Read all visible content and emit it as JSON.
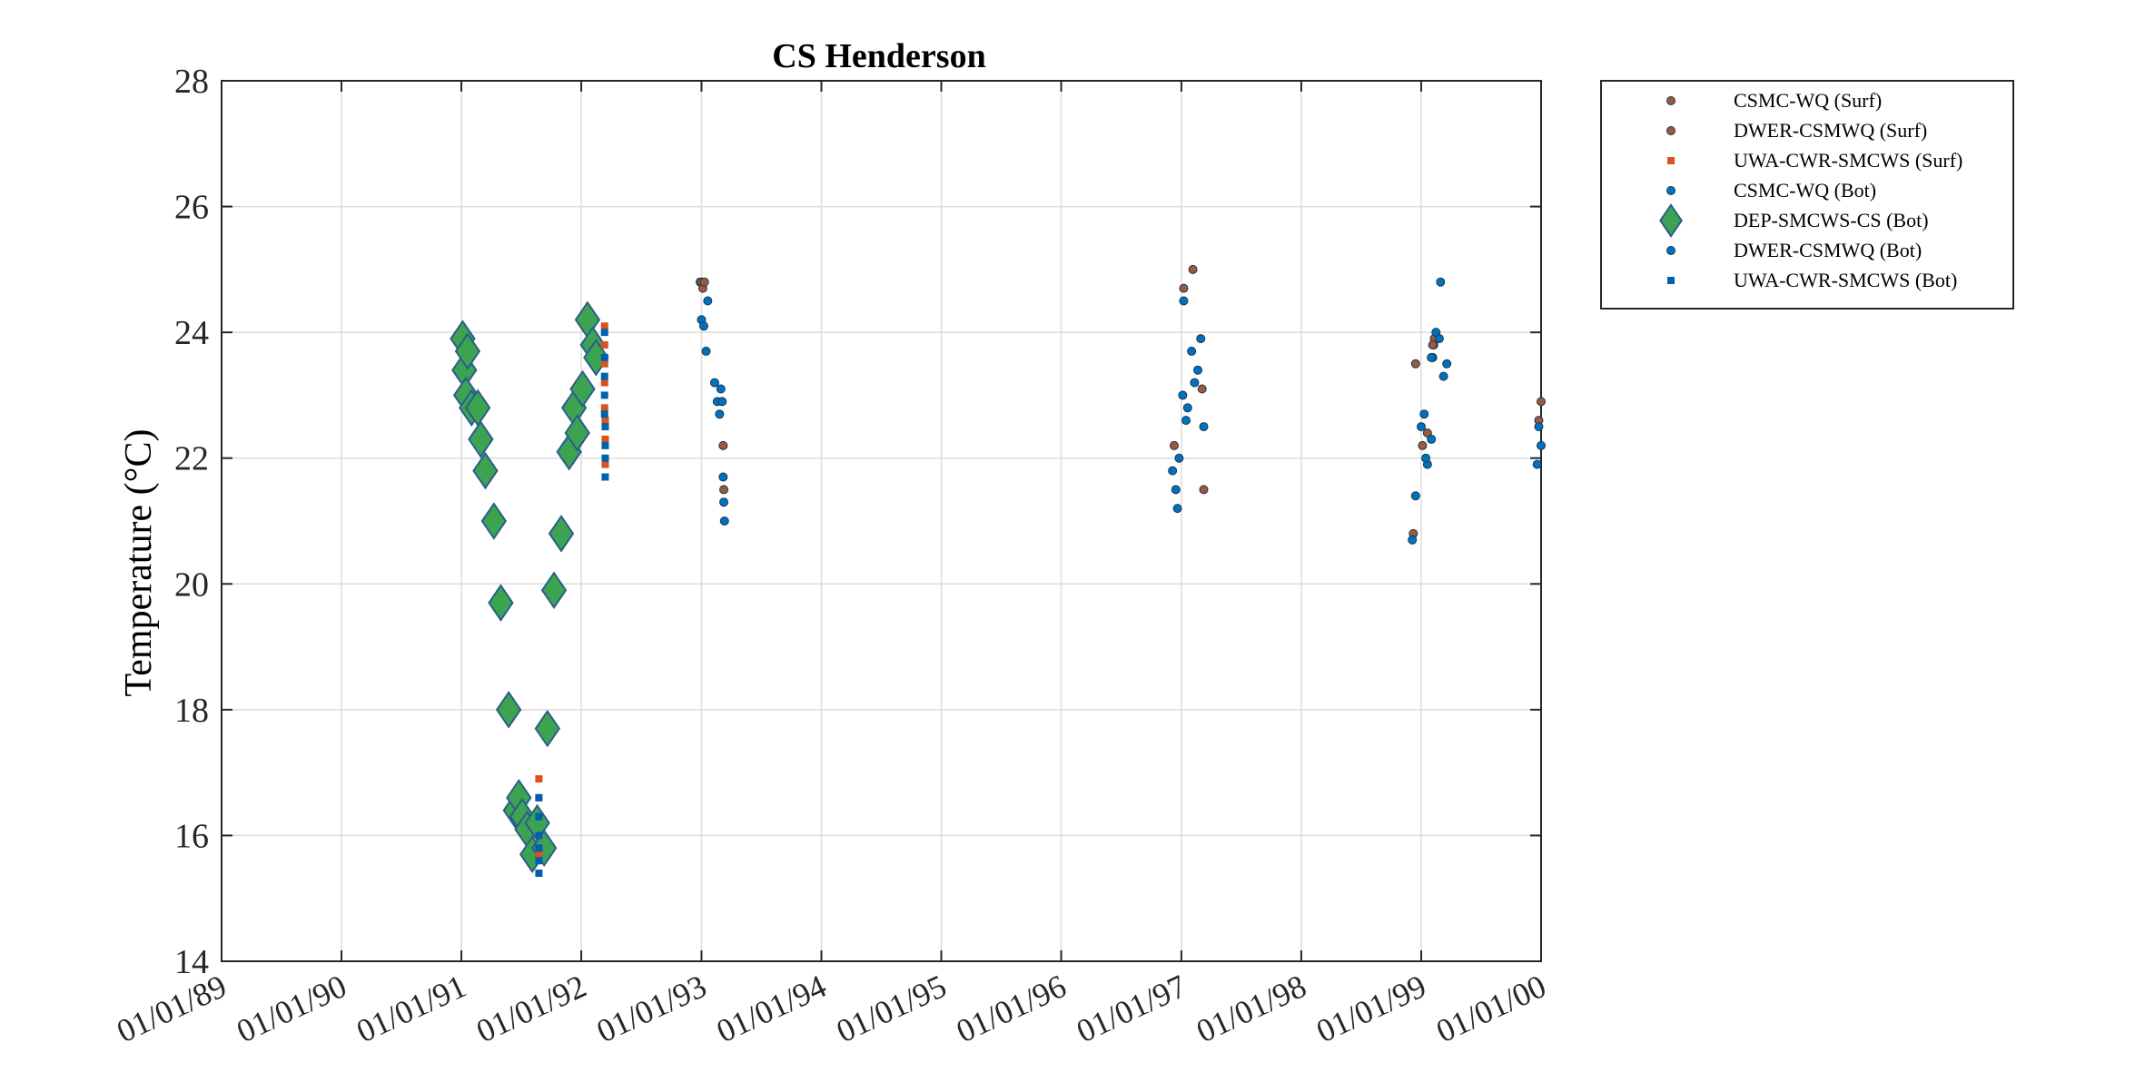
{
  "chart_data": {
    "type": "scatter",
    "title": "CS Henderson",
    "xlabel": "",
    "ylabel": "Temperature (°C)",
    "ylim": [
      14,
      28
    ],
    "yticks": [
      14,
      16,
      18,
      20,
      22,
      24,
      26,
      28
    ],
    "xlim": [
      "1989-01-01",
      "2000-01-01"
    ],
    "xtick_labels": [
      "01/01/89",
      "01/01/90",
      "01/01/91",
      "01/01/92",
      "01/01/93",
      "01/01/94",
      "01/01/95",
      "01/01/96",
      "01/01/97",
      "01/01/98",
      "01/01/99",
      "01/01/00"
    ],
    "grid": true,
    "legend_position": "outside-top-right",
    "series": [
      {
        "name": "CSMC-WQ (Surf)",
        "marker": "dot",
        "color": "#9c5a3c",
        "x": [
          "1992-12-28",
          "1993-01-02",
          "1993-01-05",
          "1993-01-10",
          "1993-03-08",
          "1993-03-10",
          "1996-12-10",
          "1997-01-08",
          "1997-02-05",
          "1997-03-05",
          "1997-03-10",
          "1998-12-08",
          "1998-12-15",
          "1999-01-05",
          "1999-02-08",
          "1999-02-10",
          "1999-12-25",
          "2000-01-01"
        ],
        "y": [
          24.8,
          24.8,
          24.7,
          24.8,
          22.2,
          21.5,
          22.2,
          24.7,
          25.0,
          23.1,
          21.5,
          20.8,
          23.5,
          22.2,
          23.8,
          23.9,
          22.6,
          22.9
        ]
      },
      {
        "name": "DWER-CSMWQ (Surf)",
        "marker": "dot",
        "color": "#9c5a3c",
        "x": [
          "1999-01-20",
          "1999-02-05"
        ],
        "y": [
          22.4,
          23.8
        ]
      },
      {
        "name": "UWA-CWR-SMCWS (Surf)",
        "marker": "square",
        "color": "#d9531e",
        "x": [
          "1991-08-25",
          "1991-08-25",
          "1991-08-25",
          "1991-08-25",
          "1991-08-25",
          "1992-03-12",
          "1992-03-12",
          "1992-03-12",
          "1992-03-12",
          "1992-03-12",
          "1992-03-14",
          "1992-03-14",
          "1992-03-14"
        ],
        "y": [
          16.9,
          16.6,
          16.3,
          16.0,
          15.7,
          24.1,
          23.8,
          23.5,
          23.2,
          22.8,
          22.6,
          22.3,
          21.9
        ]
      },
      {
        "name": "CSMC-WQ (Bot)",
        "marker": "dot",
        "color": "#0072bd",
        "x": [
          "1993-01-01",
          "1993-01-08",
          "1993-01-15",
          "1993-01-20",
          "1993-02-10",
          "1993-02-18",
          "1993-02-25",
          "1993-03-01",
          "1993-03-05",
          "1993-03-08",
          "1993-03-10",
          "1993-03-12",
          "1996-12-05",
          "1996-12-15",
          "1996-12-20",
          "1996-12-25",
          "1997-01-05",
          "1997-01-08",
          "1997-01-15",
          "1997-01-20",
          "1997-02-01",
          "1997-02-10",
          "1997-02-20",
          "1997-03-01",
          "1997-03-10",
          "1998-12-05",
          "1998-12-15",
          "1999-01-01",
          "1999-01-10",
          "1999-01-20",
          "1999-02-01",
          "1999-02-05",
          "1999-02-15",
          "1999-02-25",
          "1999-03-01",
          "1999-03-10",
          "1999-03-20",
          "1999-12-20",
          "1999-12-25",
          "2000-01-01"
        ],
        "y": [
          24.2,
          24.1,
          23.7,
          24.5,
          23.2,
          22.9,
          22.7,
          23.1,
          22.9,
          21.7,
          21.3,
          21.0,
          21.8,
          21.5,
          21.2,
          22.0,
          23.0,
          24.5,
          22.6,
          22.8,
          23.7,
          23.2,
          23.4,
          23.9,
          22.5,
          20.7,
          21.4,
          22.5,
          22.7,
          21.9,
          22.3,
          23.6,
          24.0,
          23.9,
          24.8,
          23.3,
          23.5,
          21.9,
          22.5,
          22.2
        ]
      },
      {
        "name": "DEP-SMCWS-CS (Bot)",
        "marker": "diamond",
        "color": "#3ca451",
        "edge": "#2b5d8c",
        "x": [
          "1991-01-05",
          "1991-01-10",
          "1991-01-15",
          "1991-01-20",
          "1991-02-01",
          "1991-02-20",
          "1991-03-01",
          "1991-03-15",
          "1991-04-10",
          "1991-05-01",
          "1991-05-25",
          "1991-06-15",
          "1991-06-25",
          "1991-07-05",
          "1991-07-20",
          "1991-08-05",
          "1991-08-20",
          "1991-09-10",
          "1991-09-20",
          "1991-10-10",
          "1991-11-01",
          "1991-11-25",
          "1991-12-10",
          "1991-12-20",
          "1992-01-05",
          "1992-01-20",
          "1992-02-05",
          "1992-02-15"
        ],
        "y": [
          23.9,
          23.4,
          23.0,
          23.7,
          22.8,
          22.8,
          22.3,
          21.8,
          21.0,
          19.7,
          18.0,
          16.4,
          16.6,
          16.3,
          16.1,
          15.7,
          16.2,
          15.8,
          17.7,
          19.9,
          20.8,
          22.1,
          22.8,
          22.4,
          23.1,
          24.2,
          23.8,
          23.6
        ]
      },
      {
        "name": "DWER-CSMWQ (Bot)",
        "marker": "dot",
        "color": "#0072bd",
        "x": [
          "1999-01-15",
          "1999-02-01"
        ],
        "y": [
          22.0,
          23.6
        ]
      },
      {
        "name": "UWA-CWR-SMCWS (Bot)",
        "marker": "square",
        "color": "#0060b0",
        "x": [
          "1991-08-25",
          "1991-08-25",
          "1991-08-25",
          "1991-08-25",
          "1991-08-25",
          "1991-08-25",
          "1992-03-12",
          "1992-03-12",
          "1992-03-12",
          "1992-03-12",
          "1992-03-12",
          "1992-03-14",
          "1992-03-14",
          "1992-03-14",
          "1992-03-14"
        ],
        "y": [
          16.6,
          16.3,
          16.0,
          15.8,
          15.6,
          15.4,
          24.0,
          23.6,
          23.3,
          23.0,
          22.7,
          22.5,
          22.2,
          22.0,
          21.7
        ]
      }
    ]
  }
}
